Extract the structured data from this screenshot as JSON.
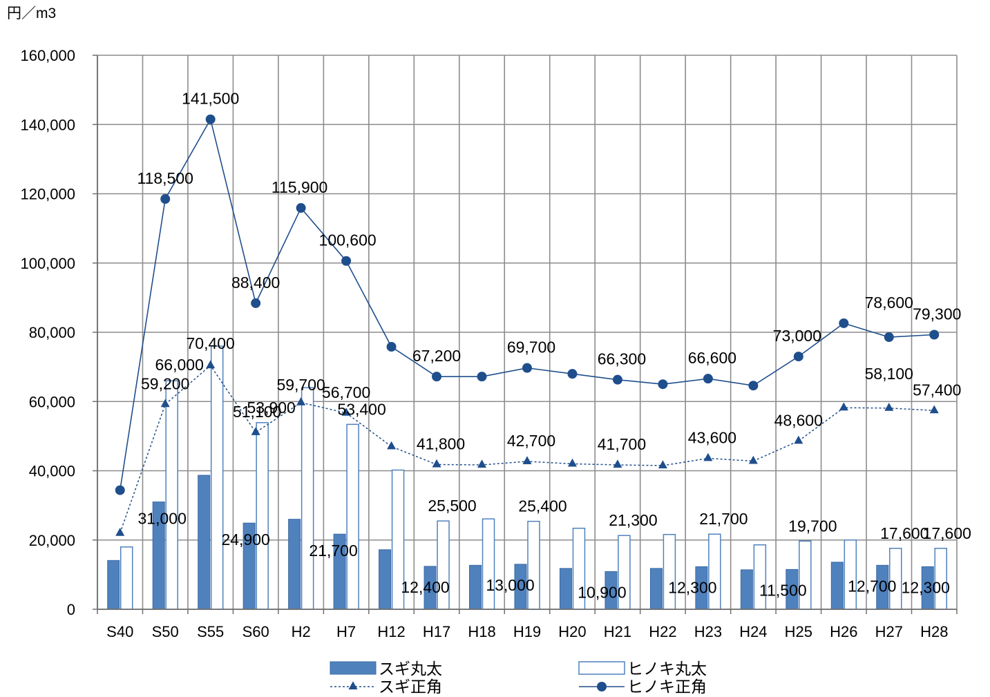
{
  "chart_data": {
    "type": "bar",
    "y_unit": "円／m3",
    "ylim": [
      0,
      160000
    ],
    "y_ticks": [
      "0",
      "20,000",
      "40,000",
      "60,000",
      "80,000",
      "100,000",
      "120,000",
      "140,000",
      "160,000"
    ],
    "grid": true,
    "legend_position": "bottom",
    "categories": [
      "S40",
      "S50",
      "S55",
      "S60",
      "H2",
      "H7",
      "H12",
      "H17",
      "H18",
      "H19",
      "H20",
      "H21",
      "H22",
      "H23",
      "H24",
      "H25",
      "H26",
      "H27",
      "H28"
    ],
    "series": [
      {
        "name": "スギ丸太",
        "kind": "bar",
        "color": "#4f81bd",
        "values": [
          14100,
          31000,
          38700,
          24900,
          26000,
          21700,
          17200,
          12400,
          12700,
          13000,
          11800,
          10900,
          11800,
          12300,
          11400,
          11500,
          13600,
          12700,
          12300
        ],
        "labels": [
          "",
          "31,000",
          "",
          "24,900",
          "",
          "21,700",
          "",
          "12,400",
          "",
          "13,000",
          "",
          "10,900",
          "",
          "12,300",
          "",
          "11,500",
          "",
          "12,700",
          "12,300"
        ]
      },
      {
        "name": "ヒノキ丸太",
        "kind": "bar",
        "color": "#ffffff",
        "values": [
          18000,
          66000,
          76000,
          53900,
          64000,
          53400,
          40200,
          25500,
          26100,
          25400,
          23400,
          21300,
          21600,
          21700,
          18600,
          19700,
          20000,
          17600,
          17600
        ],
        "labels": [
          "",
          "66,000",
          "",
          "53,900",
          "",
          "53,400",
          "",
          "25,500",
          "",
          "25,400",
          "",
          "21,300",
          "",
          "21,700",
          "",
          "19,700",
          "",
          "17,600",
          "17,600"
        ]
      },
      {
        "name": "スギ正角",
        "kind": "line",
        "color": "#1f4e8c",
        "values": [
          22000,
          59200,
          70400,
          51100,
          59700,
          56700,
          47000,
          41800,
          41700,
          42700,
          42000,
          41700,
          41500,
          43600,
          42800,
          48600,
          58200,
          58100,
          57400
        ],
        "labels": [
          "",
          "59,200",
          "70,400",
          "51,100",
          "59,700",
          "56,700",
          "",
          "41,800",
          "",
          "42,700",
          "",
          "41,700",
          "",
          "43,600",
          "",
          "48,600",
          "",
          "58,100",
          "57,400"
        ]
      },
      {
        "name": "ヒノキ正角",
        "kind": "line",
        "color": "#1f4e8c",
        "values": [
          34400,
          118500,
          141500,
          88400,
          115900,
          100600,
          75800,
          67200,
          67200,
          69700,
          68000,
          66300,
          65000,
          66600,
          64600,
          73000,
          82600,
          78600,
          79300
        ],
        "labels": [
          "",
          "118,500",
          "141,500",
          "88,400",
          "115,900",
          "100,600",
          "",
          "67,200",
          "",
          "69,700",
          "",
          "66,300",
          "",
          "66,600",
          "",
          "73,000",
          "",
          "78,600",
          "79,300"
        ]
      }
    ]
  }
}
